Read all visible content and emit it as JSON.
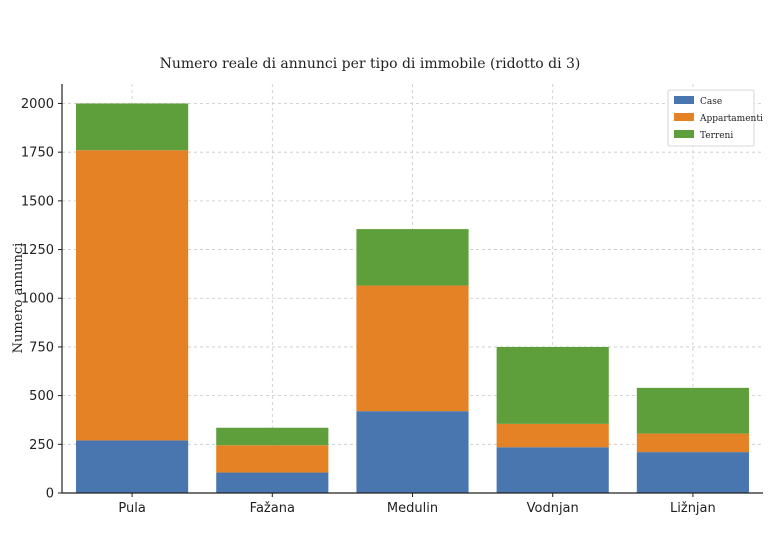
{
  "chart_data": {
    "type": "bar",
    "stacked": true,
    "title": "Numero reale di annunci per tipo di immobile (ridotto di 3)",
    "xlabel": "",
    "ylabel": "Numero annunci",
    "categories": [
      "Pula",
      "Fažana",
      "Medulin",
      "Vodnjan",
      "Ližnjan"
    ],
    "series": [
      {
        "name": "Case",
        "color": "#4a76b0",
        "values": [
          270,
          105,
          420,
          235,
          210
        ]
      },
      {
        "name": "Appartamenti",
        "color": "#e48225",
        "values": [
          1490,
          140,
          645,
          120,
          95
        ]
      },
      {
        "name": "Terreni",
        "color": "#5e9e3b",
        "values": [
          240,
          90,
          290,
          395,
          235
        ]
      }
    ],
    "ylim": [
      0,
      2100
    ],
    "yticks": [
      0,
      250,
      500,
      750,
      1000,
      1250,
      1500,
      1750,
      2000
    ],
    "grid": true,
    "legend_position": "top-right"
  }
}
